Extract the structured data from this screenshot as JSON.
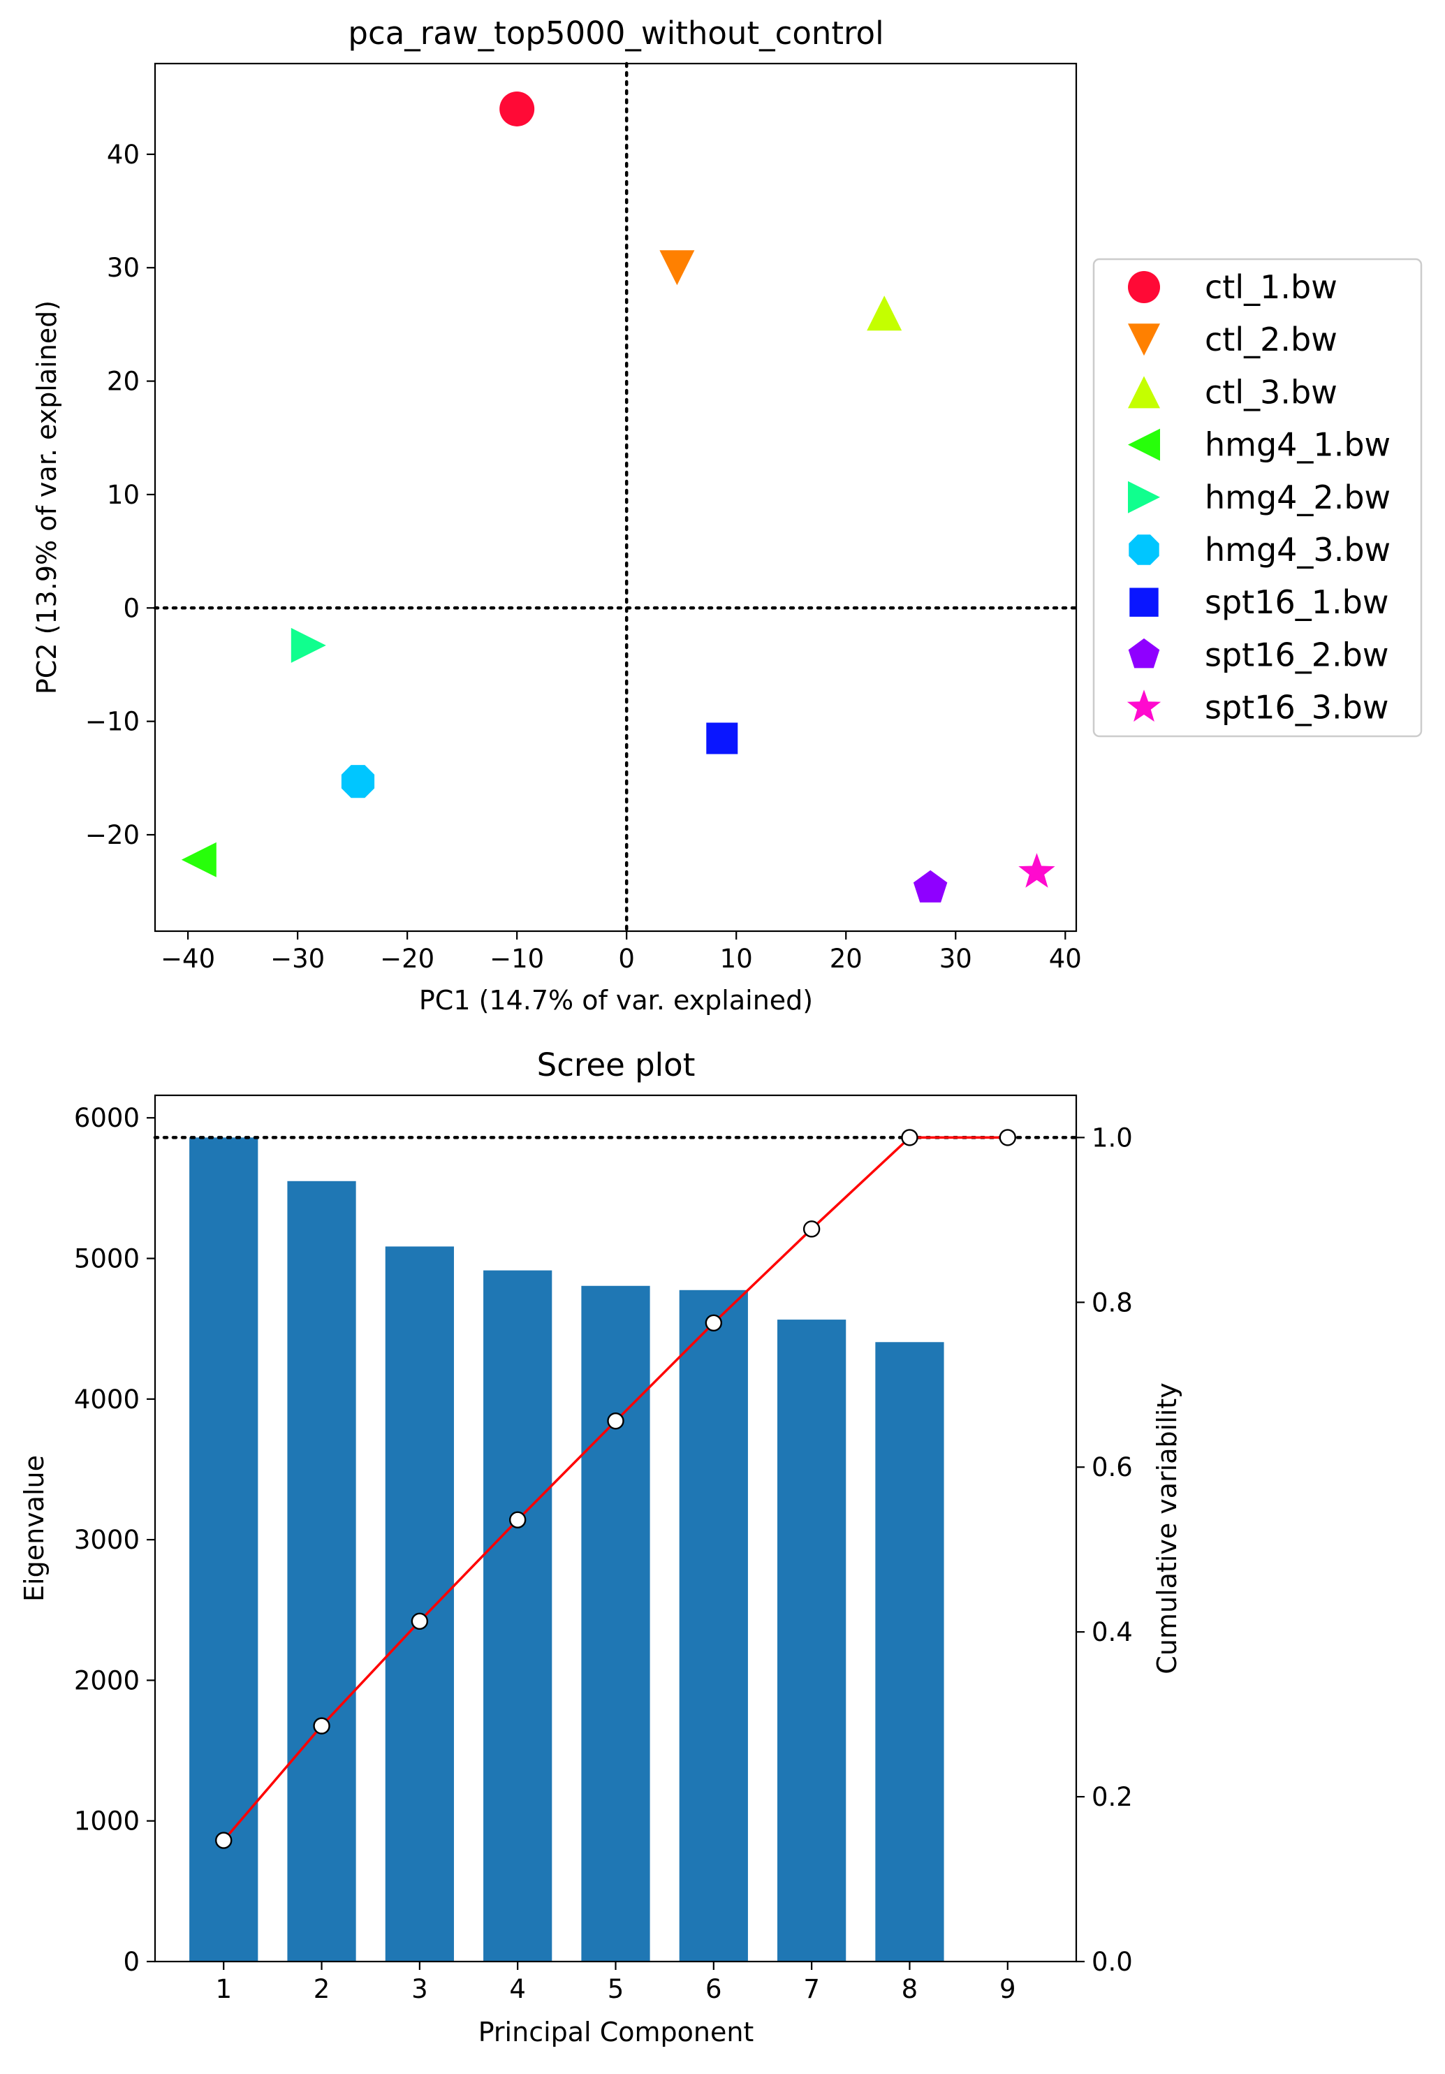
{
  "chart_data": [
    {
      "type": "scatter",
      "title": "pca_raw_top5000_without_control",
      "xlabel": "PC1 (14.7% of var. explained)",
      "ylabel": "PC2 (13.9% of var. explained)",
      "xlim": [
        -43,
        41
      ],
      "ylim": [
        -28.5,
        48
      ],
      "xticks": [
        -40,
        -30,
        -20,
        -10,
        0,
        10,
        20,
        30,
        40
      ],
      "yticks": [
        -20,
        -10,
        0,
        10,
        20,
        30,
        40
      ],
      "reference_lines": {
        "x": 0,
        "y": 0,
        "style": "dotted"
      },
      "legend_position": "outside-right",
      "points": [
        {
          "name": "ctl_1.bw",
          "x": -10,
          "y": 44,
          "marker": "circle",
          "color": "#ff0a36"
        },
        {
          "name": "ctl_2.bw",
          "x": 4.6,
          "y": 30,
          "marker": "triangle-down",
          "color": "#ff8000"
        },
        {
          "name": "ctl_3.bw",
          "x": 23.5,
          "y": 26,
          "marker": "triangle-up",
          "color": "#c4ff00"
        },
        {
          "name": "hmg4_1.bw",
          "x": -39,
          "y": -22.2,
          "marker": "triangle-left",
          "color": "#27ff0a"
        },
        {
          "name": "hmg4_2.bw",
          "x": -29,
          "y": -3.3,
          "marker": "triangle-right",
          "color": "#10ff8e"
        },
        {
          "name": "hmg4_3.bw",
          "x": -24.5,
          "y": -15.3,
          "marker": "octagon",
          "color": "#00c6ff"
        },
        {
          "name": "spt16_1.bw",
          "x": 8.7,
          "y": -11.5,
          "marker": "square",
          "color": "#0a16ff"
        },
        {
          "name": "spt16_2.bw",
          "x": 27.7,
          "y": -24.7,
          "marker": "pentagon",
          "color": "#8f00ff"
        },
        {
          "name": "spt16_3.bw",
          "x": 37.4,
          "y": -23.3,
          "marker": "star",
          "color": "#ff0ace"
        }
      ]
    },
    {
      "type": "bar",
      "title": "Scree plot",
      "xlabel": "Principal Component",
      "ylabel": "Eigenvalue",
      "ylabel_right": "Cumulative variability",
      "categories": [
        "1",
        "2",
        "3",
        "4",
        "5",
        "6",
        "7",
        "8",
        "9"
      ],
      "values": [
        5860,
        5550,
        5085,
        4915,
        4805,
        4775,
        4565,
        4405,
        0
      ],
      "cumulative": [
        0.147,
        0.286,
        0.413,
        0.536,
        0.656,
        0.775,
        0.889,
        1.0,
        1.0
      ],
      "ylim": [
        0,
        6160
      ],
      "ylim_right": [
        0,
        1.0512
      ],
      "yticks": [
        0,
        1000,
        2000,
        3000,
        4000,
        5000,
        6000
      ],
      "yticks_right": [
        "0.0",
        "0.2",
        "0.4",
        "0.6",
        "0.8",
        "1.0"
      ],
      "reference_line_right": 1.0,
      "bar_color": "#1f77b4",
      "line_color": "#ff0000"
    }
  ]
}
